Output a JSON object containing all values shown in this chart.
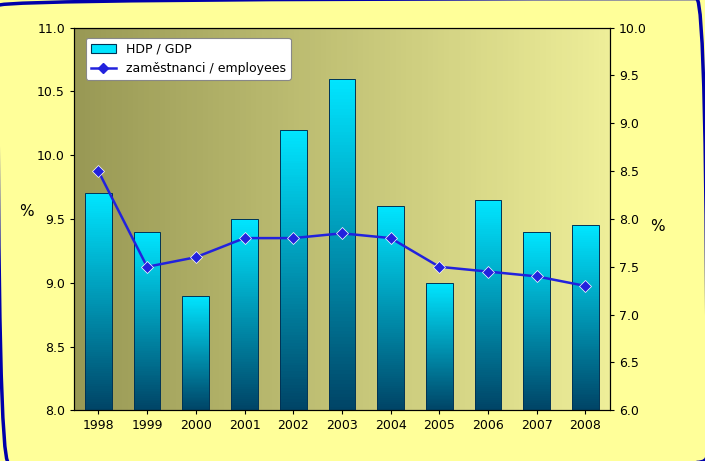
{
  "years": [
    1998,
    1999,
    2000,
    2001,
    2002,
    2003,
    2004,
    2005,
    2006,
    2007,
    2008
  ],
  "gdp_values": [
    9.7,
    9.4,
    8.9,
    9.5,
    10.2,
    10.6,
    9.6,
    9.0,
    9.65,
    9.4,
    9.45
  ],
  "emp_values": [
    8.5,
    7.5,
    7.6,
    7.8,
    7.8,
    7.85,
    7.8,
    7.5,
    7.45,
    7.4,
    7.3
  ],
  "left_ylim": [
    8.0,
    11.0
  ],
  "right_ylim": [
    6.0,
    10.0
  ],
  "left_yticks": [
    8.0,
    8.5,
    9.0,
    9.5,
    10.0,
    10.5,
    11.0
  ],
  "right_yticks": [
    6.0,
    6.5,
    7.0,
    7.5,
    8.0,
    8.5,
    9.0,
    9.5,
    10.0
  ],
  "ylabel_left": "%",
  "ylabel_right": "%",
  "bar_color_top": "#00E5FF",
  "bar_color_bottom": "#004466",
  "line_color": "#2222DD",
  "marker_color": "#2222DD",
  "background_outer": "#FFFF99",
  "background_inner_left": "#999955",
  "background_inner_right": "#EEEE99",
  "legend_gdp": "HDP / GDP",
  "legend_emp": "zaměstnanci / employees",
  "bar_width": 0.55,
  "n_gradient_steps": 100
}
